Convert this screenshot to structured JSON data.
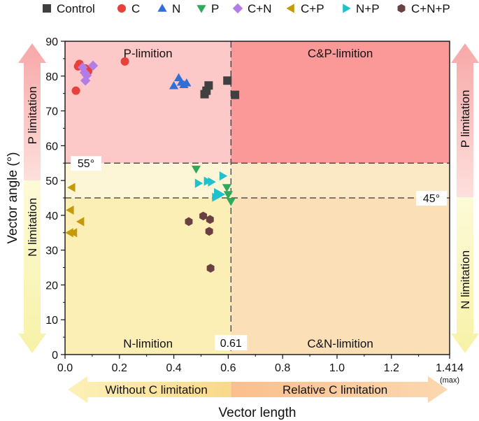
{
  "chart_data": {
    "type": "scatter",
    "xlabel": "Vector length",
    "ylabel": "Vector angle (°)",
    "xlim": [
      0,
      1.414
    ],
    "ylim": [
      0,
      90
    ],
    "x_ticks": [
      {
        "value": 0,
        "label": "0.0"
      },
      {
        "value": 0.2,
        "label": "0.2"
      },
      {
        "value": 0.4,
        "label": "0.4"
      },
      {
        "value": 0.6,
        "label": "0.6"
      },
      {
        "value": 0.8,
        "label": "0.8"
      },
      {
        "value": 1.0,
        "label": "1.0"
      },
      {
        "value": 1.2,
        "label": "1.2"
      },
      {
        "value": 1.414,
        "label": "1.414"
      }
    ],
    "x_max_note": "(max)",
    "y_ticks": [
      0,
      10,
      20,
      30,
      40,
      50,
      60,
      70,
      80,
      90
    ],
    "grid": false,
    "legend_position": "top",
    "thresholds": {
      "x": {
        "value": 0.61,
        "label": "0.61"
      },
      "y_upper": {
        "value": 55,
        "label": "55°"
      },
      "y_lower": {
        "value": 45,
        "label": "45°"
      }
    },
    "regions": [
      {
        "label": "P-limition",
        "x": [
          0,
          0.61
        ],
        "y": [
          55,
          90
        ],
        "color": "#fcc8c8"
      },
      {
        "label": "C&P-limition",
        "x": [
          0.61,
          1.414
        ],
        "y": [
          55,
          90
        ],
        "color": "#fb9898"
      },
      {
        "label": "N-limition",
        "x": [
          0,
          0.61
        ],
        "y": [
          0,
          45
        ],
        "color": "#fcefb6"
      },
      {
        "label": "C&N-limition",
        "x": [
          0.61,
          1.414
        ],
        "y": [
          0,
          45
        ],
        "color": "#fbdfb6"
      },
      {
        "label": "",
        "x": [
          0,
          0.61
        ],
        "y": [
          45,
          55
        ],
        "color": "#fdf6d6"
      },
      {
        "label": "",
        "x": [
          0.61,
          1.414
        ],
        "y": [
          45,
          55
        ],
        "color": "#fbe8c4"
      }
    ],
    "side_labels": {
      "left_top": "P limitation",
      "left_bottom": "N limitation",
      "right_top": "P limitation",
      "right_bottom": "N limitation"
    },
    "bottom_arrows": {
      "left": "Without C limitation",
      "right": "Relative C limitation"
    },
    "series": [
      {
        "name": "Control",
        "marker": "square",
        "color": "#404040",
        "points": [
          [
            0.513,
            74.8
          ],
          [
            0.52,
            75.8
          ],
          [
            0.528,
            77.3
          ],
          [
            0.597,
            78.7
          ],
          [
            0.625,
            74.6
          ]
        ]
      },
      {
        "name": "C",
        "marker": "circle",
        "color": "#e8403a",
        "points": [
          [
            0.04,
            75.8
          ],
          [
            0.048,
            82.8
          ],
          [
            0.053,
            83.5
          ],
          [
            0.075,
            82.2
          ],
          [
            0.085,
            81.4
          ],
          [
            0.22,
            84.2
          ]
        ]
      },
      {
        "name": "N",
        "marker": "triangle-up",
        "color": "#2f6fd6",
        "points": [
          [
            0.4,
            77.2
          ],
          [
            0.418,
            79.5
          ],
          [
            0.428,
            78.2
          ],
          [
            0.437,
            77.5
          ],
          [
            0.447,
            78.0
          ]
        ]
      },
      {
        "name": "P",
        "marker": "triangle-down",
        "color": "#2eaa5b",
        "points": [
          [
            0.482,
            53.3
          ],
          [
            0.595,
            48.0
          ],
          [
            0.6,
            46.0
          ],
          [
            0.61,
            44.0
          ]
        ]
      },
      {
        "name": "C+N",
        "marker": "diamond",
        "color": "#b27ee6",
        "points": [
          [
            0.065,
            82.5
          ],
          [
            0.072,
            81.0
          ],
          [
            0.08,
            80.2
          ],
          [
            0.075,
            78.7
          ],
          [
            0.103,
            83.0
          ]
        ]
      },
      {
        "name": "C+P",
        "marker": "triangle-left",
        "color": "#c49a0a",
        "points": [
          [
            0.025,
            48.0
          ],
          [
            0.02,
            41.5
          ],
          [
            0.018,
            35.0
          ],
          [
            0.032,
            35.0
          ],
          [
            0.058,
            38.2
          ]
        ]
      },
      {
        "name": "N+P",
        "marker": "triangle-right",
        "color": "#1ec1cc",
        "points": [
          [
            0.49,
            49.2
          ],
          [
            0.523,
            49.8
          ],
          [
            0.538,
            49.6
          ],
          [
            0.553,
            45.2
          ],
          [
            0.56,
            46.5
          ],
          [
            0.572,
            46.0
          ],
          [
            0.58,
            51.3
          ]
        ]
      },
      {
        "name": "C+N+P",
        "marker": "hexagon",
        "color": "#6b4040",
        "points": [
          [
            0.455,
            38.2
          ],
          [
            0.508,
            39.8
          ],
          [
            0.533,
            38.8
          ],
          [
            0.53,
            35.4
          ],
          [
            0.535,
            24.8
          ]
        ]
      }
    ]
  }
}
